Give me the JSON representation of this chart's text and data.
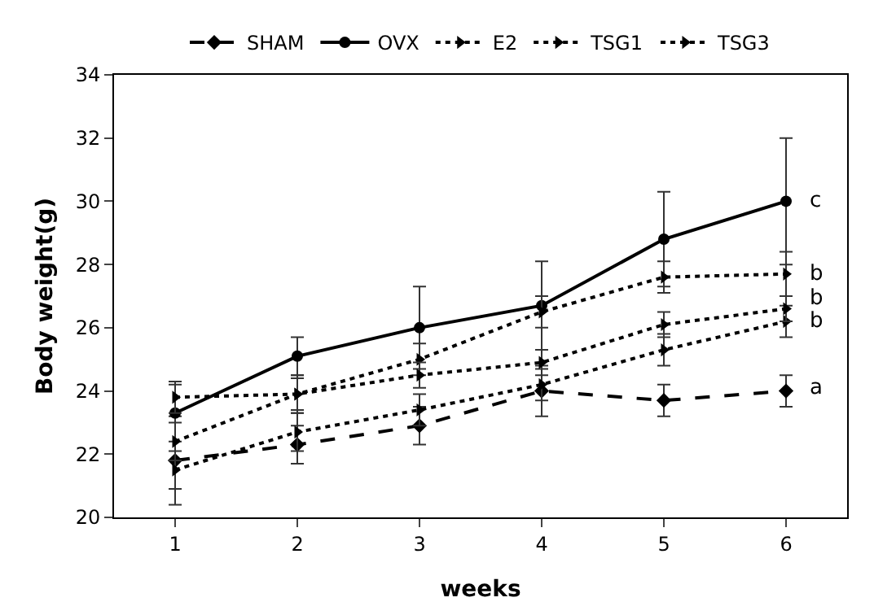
{
  "chart_data": {
    "type": "line",
    "ylabel": "Body weight(g)",
    "xlabel": "weeks",
    "categories": [
      "1",
      "2",
      "3",
      "4",
      "5",
      "6"
    ],
    "ylim": [
      20,
      34
    ],
    "yticks": [
      20,
      22,
      24,
      26,
      28,
      30,
      32,
      34
    ],
    "grid": false,
    "legend": "top",
    "series": [
      {
        "name": "SHAM",
        "color": "#000000",
        "line_style": "dashed",
        "marker": "diamond",
        "values": [
          21.8,
          22.3,
          22.9,
          24.0,
          23.7,
          24.0
        ],
        "errors": [
          1.4,
          0.6,
          0.6,
          0.8,
          0.5,
          0.5
        ]
      },
      {
        "name": "OVX",
        "color": "#000000",
        "line_style": "solid",
        "marker": "circle",
        "values": [
          23.3,
          25.1,
          26.0,
          26.7,
          28.8,
          30.0
        ],
        "errors": [
          0.9,
          0.6,
          1.3,
          1.4,
          1.5,
          2.0
        ]
      },
      {
        "name": "E2",
        "color": "#000000",
        "line_style": "dotted",
        "marker": "triangle",
        "values": [
          22.4,
          23.9,
          25.0,
          26.5,
          27.6,
          27.7
        ],
        "errors": [
          0.6,
          0.6,
          0.5,
          0.5,
          0.5,
          0.7
        ]
      },
      {
        "name": "TSG1",
        "color": "#000000",
        "line_style": "dotted",
        "marker": "triangle",
        "values": [
          21.5,
          22.7,
          23.4,
          24.2,
          25.3,
          26.2
        ],
        "errors": [
          0.6,
          0.6,
          0.5,
          0.5,
          0.5,
          0.5
        ]
      },
      {
        "name": "TSG3",
        "color": "#000000",
        "line_style": "dotted",
        "marker": "triangle",
        "values": [
          23.8,
          23.9,
          24.5,
          24.9,
          26.1,
          26.6
        ],
        "errors": [
          0.5,
          0.5,
          0.4,
          0.4,
          0.4,
          0.4
        ]
      }
    ],
    "annotations": [
      {
        "text": "c",
        "x": "6",
        "y": 30.0
      },
      {
        "text": "b",
        "x": "6",
        "y": 27.7
      },
      {
        "text": "b",
        "x": "6",
        "y": 26.9
      },
      {
        "text": "b",
        "x": "6",
        "y": 26.2
      },
      {
        "text": "a",
        "x": "6",
        "y": 24.1
      }
    ]
  }
}
